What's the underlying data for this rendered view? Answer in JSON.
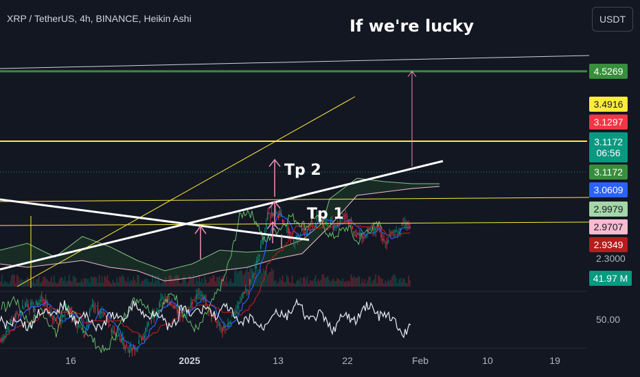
{
  "header": {
    "title": "XRP / TetherUS, 4h, BINANCE, Heikin Ashi",
    "currency_button": "USDT"
  },
  "annotations": {
    "headline": "If we're lucky",
    "tp1": "Tp 1",
    "tp2": "Tp 2"
  },
  "price_labels": {
    "target": "4.5269",
    "yellow_top": "3.4916",
    "red_top": "3.1297",
    "last_price": "3.1172",
    "countdown": "06:56",
    "green_mid": "3.1172",
    "blue": "3.0609",
    "light_green": "2.9979",
    "pink": "2.9707",
    "red_bottom": "2.9349",
    "partial_tick": "2.3000",
    "volume": "41.97 M",
    "rsi_mid": "50.00"
  },
  "x_axis": {
    "ticks": [
      "16",
      "2025",
      "13",
      "22",
      "Feb",
      "10",
      "19"
    ]
  },
  "colors": {
    "background": "#131722",
    "green": "#388e3c",
    "yellow": "#ffeb3b",
    "red": "#f23645",
    "blue": "#2962ff",
    "light_green": "#a5d6a7",
    "pink": "#f8bbd0",
    "dark_red": "#b71c1c",
    "teal": "#089981"
  },
  "chart_data": {
    "type": "candlestick",
    "title": "XRP / TetherUS, 4h, BINANCE, Heikin Ashi",
    "currency": "USDT",
    "price_levels": [
      4.5269,
      3.4916,
      3.1297,
      3.1172,
      3.0609,
      2.9979,
      2.9707,
      2.9349
    ],
    "y_reference_ticks": [
      2.3
    ],
    "x_ticks": [
      "16",
      "2025",
      "13",
      "22",
      "Feb",
      "10",
      "19"
    ],
    "close_path": [
      2.05,
      2.2,
      2.3,
      2.4,
      2.35,
      2.45,
      2.3,
      2.2,
      2.35,
      2.25,
      2.1,
      2.4,
      2.3,
      2.2,
      2.1,
      2.0,
      1.95,
      2.1,
      2.25,
      2.4,
      2.45,
      2.35,
      2.3,
      2.4,
      2.5,
      2.35,
      2.2,
      2.15,
      2.3,
      2.45,
      2.6,
      2.85,
      3.2,
      3.25,
      3.15,
      2.95,
      3.05,
      3.1,
      3.2,
      3.15,
      3.1,
      3.2,
      3.1,
      3.0,
      3.05,
      3.1,
      2.95,
      3.05,
      3.1,
      3.12
    ],
    "volume_last": "41.97 M",
    "rsi_reference": "50.00",
    "annotations": [
      "If we're lucky",
      "Tp 1",
      "Tp 2"
    ]
  }
}
